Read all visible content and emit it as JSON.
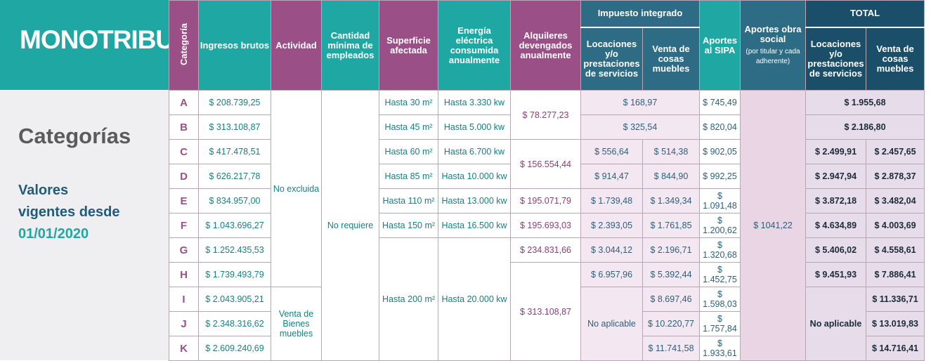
{
  "brand": "MONOTRIBUTO",
  "sidebar": {
    "title": "Categorías",
    "valores_line1": "Valores",
    "valores_line2": "vigentes desde",
    "date": "01/01/2020"
  },
  "headers": {
    "categoria": "Categoría",
    "ingresos": "Ingresos brutos",
    "actividad": "Actividad",
    "empleados": "Cantidad mínima de empleados",
    "superficie": "Superficie afectada",
    "energia": "Energía eléctrica consumida anualmente",
    "alquileres": "Alquileres devengados anualmente",
    "impuesto": "Impuesto integrado",
    "locaciones": "Locaciones y/o prestaciones de servicios",
    "venta": "Venta de cosas muebles",
    "sipa": "Aportes al SIPA",
    "obra_social": "Aportes obra social",
    "obra_social_note": "(por titular y cada adherente)",
    "total": "TOTAL",
    "t_locaciones": "Locaciones y/o prestaciones de servicios",
    "t_venta": "Venta de cosas muebles"
  },
  "shared": {
    "actividad_1": "No excluida",
    "actividad_2": "Venta de Bienes muebles",
    "empleados": "No requiere",
    "obra_social": "$ 1041,22",
    "no_aplicable": "No aplicable"
  },
  "rows": [
    {
      "cat": "A",
      "ingresos": "$ 208.739,25",
      "superficie": "Hasta 30 m²",
      "energia": "Hasta 3.330 kw",
      "alquileres": "$ 78.277,23",
      "imp_loc": "$ 168,97",
      "imp_venta": "",
      "sipa": "$ 745,49",
      "tot_loc": "$ 1.955,68",
      "tot_venta": ""
    },
    {
      "cat": "B",
      "ingresos": "$ 313.108,87",
      "superficie": "Hasta 45 m²",
      "energia": "Hasta 5.000 kw",
      "alquileres": "",
      "imp_loc": "$ 325,54",
      "imp_venta": "",
      "sipa": "$ 820,04",
      "tot_loc": "$ 2.186,80",
      "tot_venta": ""
    },
    {
      "cat": "C",
      "ingresos": "$ 417.478,51",
      "superficie": "Hasta 60 m²",
      "energia": "Hasta 6.700 kw",
      "alquileres": "$ 156.554,44",
      "imp_loc": "$ 556,64",
      "imp_venta": "$ 514,38",
      "sipa": "$ 902,05",
      "tot_loc": "$ 2.499,91",
      "tot_venta": "$ 2.457,65"
    },
    {
      "cat": "D",
      "ingresos": "$ 626.217,78",
      "superficie": "Hasta 85 m²",
      "energia": "Hasta 10.000 kw",
      "alquileres": "",
      "imp_loc": "$ 914,47",
      "imp_venta": "$ 844,90",
      "sipa": "$ 992,25",
      "tot_loc": "$ 2.947,94",
      "tot_venta": "$ 2.878,37"
    },
    {
      "cat": "E",
      "ingresos": "$ 834.957,00",
      "superficie": "Hasta 110 m²",
      "energia": "Hasta 13.000 kw",
      "alquileres": "$ 195.071,79",
      "imp_loc": "$ 1.739,48",
      "imp_venta": "$ 1.349,34",
      "sipa": "$ 1.091,48",
      "tot_loc": "$ 3.872,18",
      "tot_venta": "$ 3.482,04"
    },
    {
      "cat": "F",
      "ingresos": "$ 1.043.696,27",
      "superficie": "Hasta 150 m²",
      "energia": "Hasta 16.500 kw",
      "alquileres": "$ 195.693,03",
      "imp_loc": "$ 2.393,05",
      "imp_venta": "$ 1.761,85",
      "sipa": "$ 1.200,62",
      "tot_loc": "$ 4.634,89",
      "tot_venta": "$ 4.003,69"
    },
    {
      "cat": "G",
      "ingresos": "$ 1.252.435,53",
      "superficie": "",
      "energia": "",
      "alquileres": "$ 234.831,66",
      "imp_loc": "$ 3.044,12",
      "imp_venta": "$ 2.196,71",
      "sipa": "$ 1.320,68",
      "tot_loc": "$ 5.406,02",
      "tot_venta": "$ 4.558,61"
    },
    {
      "cat": "H",
      "ingresos": "$ 1.739.493,79",
      "superficie": "Hasta 200 m²",
      "energia": "Hasta 20.000 kw",
      "alquileres": "$ 313.108,87",
      "imp_loc": "$ 6.957,96",
      "imp_venta": "$ 5.392,44",
      "sipa": "$ 1.452,75",
      "tot_loc": "$ 9.451,93",
      "tot_venta": "$ 7.886,41"
    },
    {
      "cat": "I",
      "ingresos": "$ 2.043.905,21",
      "superficie": "",
      "energia": "",
      "alquileres": "",
      "imp_loc": "",
      "imp_venta": "$ 8.697,46",
      "sipa": "$ 1.598,03",
      "tot_loc": "",
      "tot_venta": "$ 11.336,71"
    },
    {
      "cat": "J",
      "ingresos": "$ 2.348.316,62",
      "superficie": "",
      "energia": "",
      "alquileres": "",
      "imp_loc": "",
      "imp_venta": "$ 10.220,77",
      "sipa": "$ 1.757,84",
      "tot_loc": "",
      "tot_venta": "$ 13.019,83"
    },
    {
      "cat": "K",
      "ingresos": "$ 2.609.240,69",
      "superficie": "",
      "energia": "",
      "alquileres": "",
      "imp_loc": "",
      "imp_venta": "$ 11.741,58",
      "sipa": "$ 1.933,61",
      "tot_loc": "",
      "tot_venta": "$ 14.716,41"
    }
  ]
}
